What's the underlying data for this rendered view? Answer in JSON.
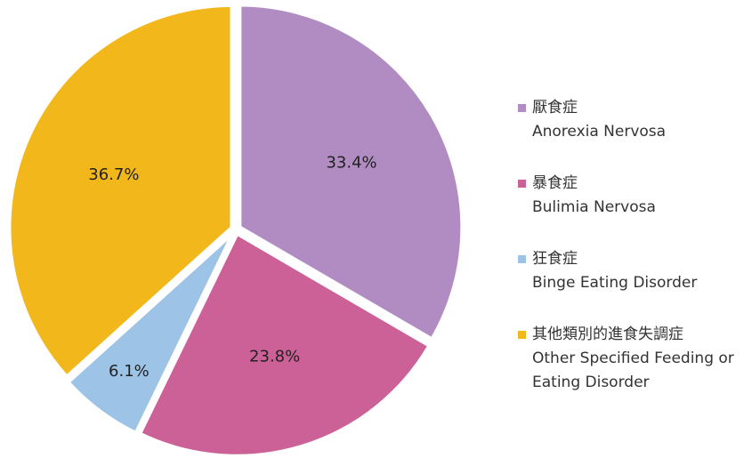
{
  "chart_data": {
    "type": "pie",
    "categories": [
      "厭食症",
      "暴食症",
      "狂食症",
      "其他類別的進食失調症"
    ],
    "category_descriptions": [
      "Anorexia Nervosa",
      "Bulimia Nervosa",
      "Binge Eating Disorder",
      "Other Specified Feeding or Eating Disorder"
    ],
    "values": [
      33.4,
      23.8,
      6.1,
      36.7
    ],
    "value_labels": [
      "33.4%",
      "23.8%",
      "6.1%",
      "36.7%"
    ],
    "colors": [
      "#b08cc2",
      "#cc6198",
      "#9dc3e6",
      "#f2b81b"
    ]
  }
}
